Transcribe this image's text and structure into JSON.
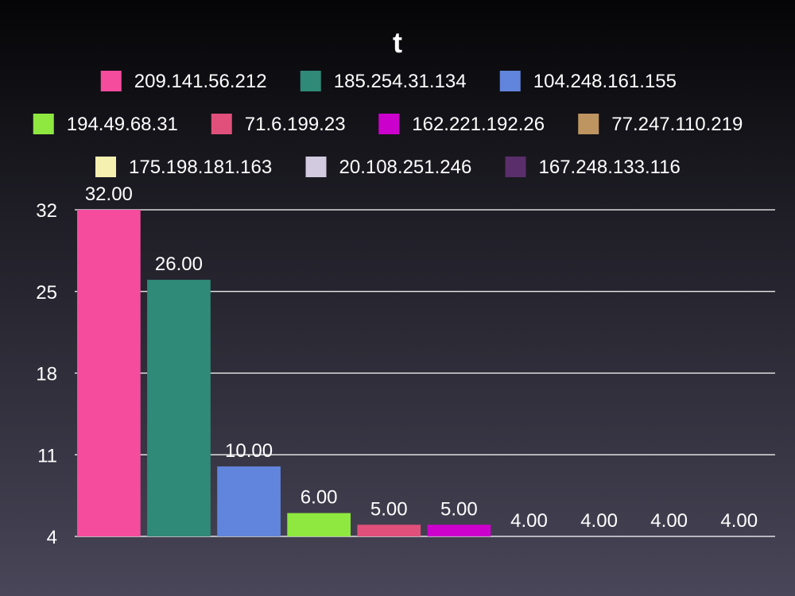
{
  "chart_data": {
    "type": "bar",
    "title": "t",
    "xlabel": "",
    "ylabel": "",
    "categories": [
      "209.141.56.212",
      "185.254.31.134",
      "104.248.161.155",
      "194.49.68.31",
      "71.6.199.23",
      "162.221.192.26",
      "77.247.110.219",
      "175.198.181.163",
      "20.108.251.246",
      "167.248.133.116"
    ],
    "values": [
      32,
      26,
      10,
      6,
      5,
      5,
      4,
      4,
      4,
      4
    ],
    "data_labels": [
      "32.00",
      "26.00",
      "10.00",
      "6.00",
      "5.00",
      "5.00",
      "4.00",
      "4.00",
      "4.00",
      "4.00"
    ],
    "colors": [
      "#f54c9e",
      "#2f8a78",
      "#6185dc",
      "#8ee83f",
      "#e0507a",
      "#cc00cc",
      "#be9560",
      "#f5efb0",
      "#d2cbe0",
      "#5a2e6a"
    ],
    "ylim": [
      4,
      32
    ],
    "yticks": [
      4,
      11,
      18,
      25,
      32
    ],
    "grid": true,
    "legend_position": "top"
  }
}
